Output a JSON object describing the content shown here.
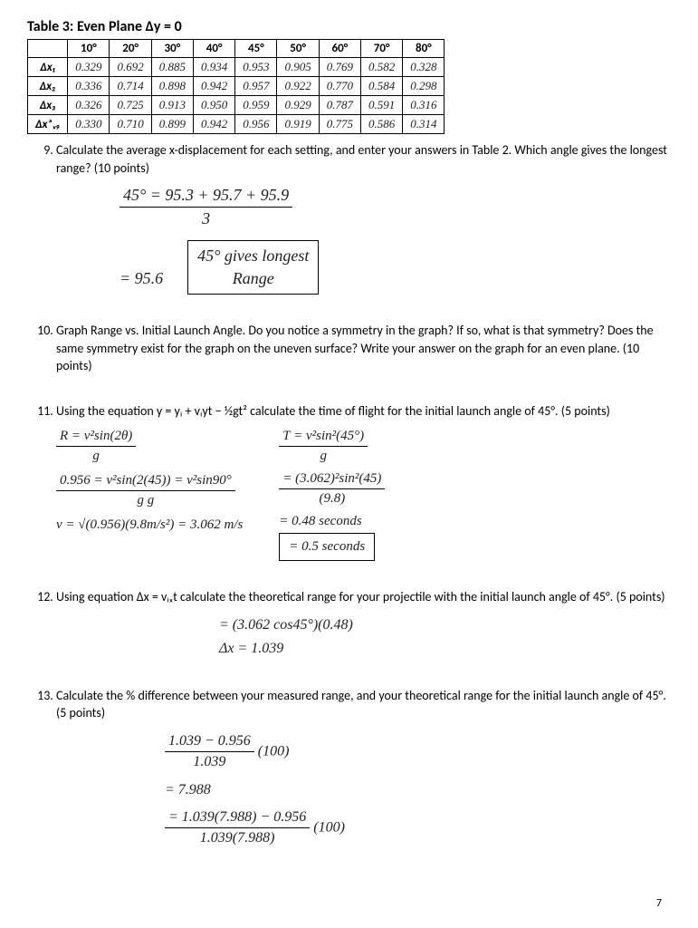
{
  "tableTitle": "Table 3: Even Plane Δy = 0",
  "headers": [
    "",
    "10°",
    "20°",
    "30°",
    "40°",
    "45°",
    "50°",
    "60°",
    "70°",
    "80°"
  ],
  "rows": [
    {
      "label": "Δx₁",
      "vals": [
        "0.329",
        "0.692",
        "0.885",
        "0.934",
        "0.953",
        "0.905",
        "0.769",
        "0.582",
        "0.328"
      ]
    },
    {
      "label": "Δx₂",
      "vals": [
        "0.336",
        "0.714",
        "0.898",
        "0.942",
        "0.957",
        "0.922",
        "0.770",
        "0.584",
        "0.298"
      ]
    },
    {
      "label": "Δx₃",
      "vals": [
        "0.326",
        "0.725",
        "0.913",
        "0.950",
        "0.959",
        "0.929",
        "0.787",
        "0.591",
        "0.316"
      ]
    },
    {
      "label": "Δxₐᵥ₉",
      "vals": [
        "0.330",
        "0.710",
        "0.899",
        "0.942",
        "0.956",
        "0.919",
        "0.775",
        "0.586",
        "0.314"
      ]
    }
  ],
  "q9": {
    "text": "Calculate the average x-displacement for each setting, and enter your answers in Table 2. Which angle gives the longest range? (10 points)",
    "h1": "45° = 95.3 + 95.7 + 95.9",
    "h1b": "3",
    "h2": "= 95.6",
    "box1": "45° gives longest",
    "box2": "Range"
  },
  "q10": {
    "text": "Graph Range vs. Initial Launch Angle. Do you notice a symmetry in the graph? If so, what is that symmetry? Does the same symmetry exist for the graph on the uneven surface? Write your answer on the graph for an even plane. (10 points)"
  },
  "q11": {
    "text": "Using the equation y = yᵢ + vᵢyt − ½gt² calculate the time of flight for the initial launch angle of 45°. (5 points)",
    "l1": "R = v²sin(2θ)",
    "l1b": "g",
    "l2": "0.956 = v²sin(2(45)) = v²sin90°",
    "l2b": "g                    g",
    "l3": "v = √(0.956)(9.8m/s²) = 3.062 m/s",
    "r1": "T = v²sin²(45°)",
    "r1b": "g",
    "r2": "= (3.062)²sin²(45)",
    "r2b": "(9.8)",
    "r3": "= 0.48 seconds",
    "r4": "= 0.5 seconds"
  },
  "q12": {
    "text": "Using equation Δx = vᵢₓt calculate the theoretical range for your projectile with the initial launch angle of 45°. (5 points)",
    "h1": "= (3.062 cos45°)(0.48)",
    "h2": "Δx = 1.039"
  },
  "q13": {
    "text": "Calculate the % difference between your measured range, and your theoretical range for the initial launch angle of 45°. (5 points)",
    "h1t": "1.039 − 0.956",
    "h1b": "1.039",
    "h1r": "(100)",
    "h2": "= 7.988",
    "h3t": "= 1.039(7.988) − 0.956",
    "h3b": "1.039(7.988)",
    "h3r": "(100)"
  },
  "pageNum": "7"
}
